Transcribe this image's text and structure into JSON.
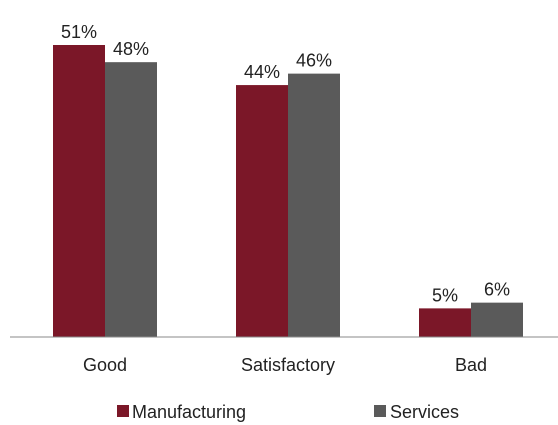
{
  "colors": {
    "manufacturing": "#7b1728",
    "services": "#5a5a5a",
    "axis": "#8a8a8a"
  },
  "chart_data": {
    "type": "bar",
    "categories": [
      "Good",
      "Satisfactory",
      "Bad"
    ],
    "series": [
      {
        "name": "Manufacturing",
        "values": [
          51,
          44,
          5
        ],
        "labels": [
          "51%",
          "44%",
          "5%"
        ],
        "color": "#7b1728"
      },
      {
        "name": "Services",
        "values": [
          48,
          46,
          6
        ],
        "labels": [
          "48%",
          "46%",
          "6%"
        ],
        "color": "#5a5a5a"
      }
    ],
    "title": "",
    "xlabel": "",
    "ylabel": "",
    "ylim": [
      0,
      51
    ],
    "grid": false,
    "legend_position": "bottom"
  }
}
